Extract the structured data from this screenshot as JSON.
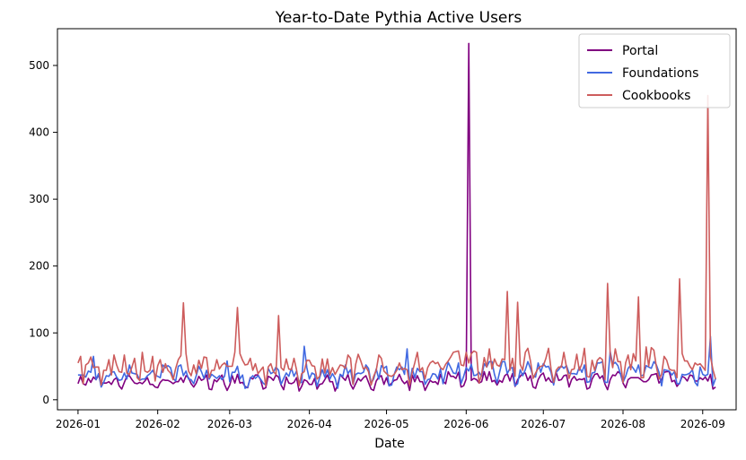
{
  "chart_data": {
    "type": "line",
    "title": "Year-to-Date Pythia Active Users",
    "xlabel": "Date",
    "ylabel": "",
    "x_start": "2026-01-01",
    "x_end": "2026-09-06",
    "xlim": [
      "2025-12-24",
      "2026-09-14"
    ],
    "ylim": [
      -15,
      555
    ],
    "x_ticks": [
      "2026-01",
      "2026-02",
      "2026-03",
      "2026-04",
      "2026-05",
      "2026-06",
      "2026-07",
      "2026-08",
      "2026-09"
    ],
    "y_ticks": [
      0,
      100,
      200,
      300,
      400,
      500
    ],
    "grid": false,
    "legend_position": "top-right",
    "series": [
      {
        "name": "Portal",
        "color": "#800080",
        "baseline": 28,
        "amplitude": 10,
        "spikes": [
          [
            "2026-06-02",
            533
          ]
        ],
        "values": []
      },
      {
        "name": "Foundations",
        "color": "#4169e1",
        "baseline": 38,
        "amplitude": 14,
        "spikes": [
          [
            "2026-01-07",
            65
          ],
          [
            "2026-02-28",
            58
          ],
          [
            "2026-03-30",
            80
          ],
          [
            "2026-05-09",
            76
          ],
          [
            "2026-07-27",
            72
          ],
          [
            "2026-09-04",
            95
          ]
        ],
        "values": []
      },
      {
        "name": "Cookbooks",
        "color": "#cd5c5c",
        "baseline": 50,
        "amplitude": 22,
        "spikes": [
          [
            "2026-02-11",
            145
          ],
          [
            "2026-03-04",
            138
          ],
          [
            "2026-03-20",
            126
          ],
          [
            "2026-06-17",
            162
          ],
          [
            "2026-06-21",
            146
          ],
          [
            "2026-07-26",
            174
          ],
          [
            "2026-08-07",
            154
          ],
          [
            "2026-08-23",
            181
          ],
          [
            "2026-09-03",
            455
          ]
        ],
        "values": []
      }
    ]
  }
}
